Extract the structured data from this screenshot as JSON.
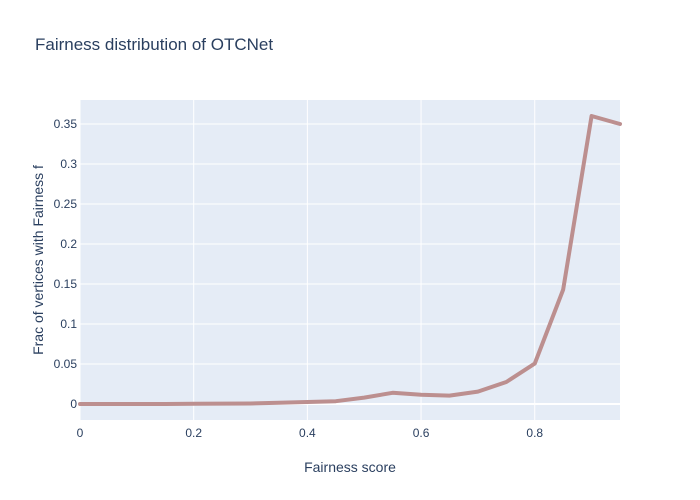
{
  "chart_data": {
    "type": "line",
    "title": "Fairness distribution of OTCNet",
    "xlabel": "Fairness score",
    "ylabel": "Frac of vertices with Fairness f",
    "xlim": [
      0,
      0.95
    ],
    "ylim": [
      -0.02,
      0.38
    ],
    "x_ticks": [
      0,
      0.2,
      0.4,
      0.6,
      0.8
    ],
    "x_tick_labels": [
      "0",
      "0.2",
      "0.4",
      "0.6",
      "0.8"
    ],
    "y_ticks": [
      0,
      0.05,
      0.1,
      0.15,
      0.2,
      0.25,
      0.3,
      0.35
    ],
    "y_tick_labels": [
      "0",
      "0.05",
      "0.1",
      "0.15",
      "0.2",
      "0.25",
      "0.3",
      "0.35"
    ],
    "grid": true,
    "colors": {
      "plot_bg": "#e5ecf6",
      "grid": "#ffffff",
      "line": "#bc8f8f",
      "text": "#2a3f5f"
    },
    "series": [
      {
        "x": [
          0,
          0.05,
          0.1,
          0.15,
          0.2,
          0.25,
          0.3,
          0.35,
          0.4,
          0.45,
          0.5,
          0.55,
          0.6,
          0.65,
          0.7,
          0.75,
          0.8,
          0.85,
          0.9,
          0.95
        ],
        "values": [
          0,
          0,
          0,
          0,
          0.0003,
          0.0005,
          0.0007,
          0.0015,
          0.0025,
          0.0035,
          0.008,
          0.014,
          0.0115,
          0.0105,
          0.0155,
          0.0275,
          0.0505,
          0.143,
          0.36,
          0.35
        ]
      }
    ]
  }
}
